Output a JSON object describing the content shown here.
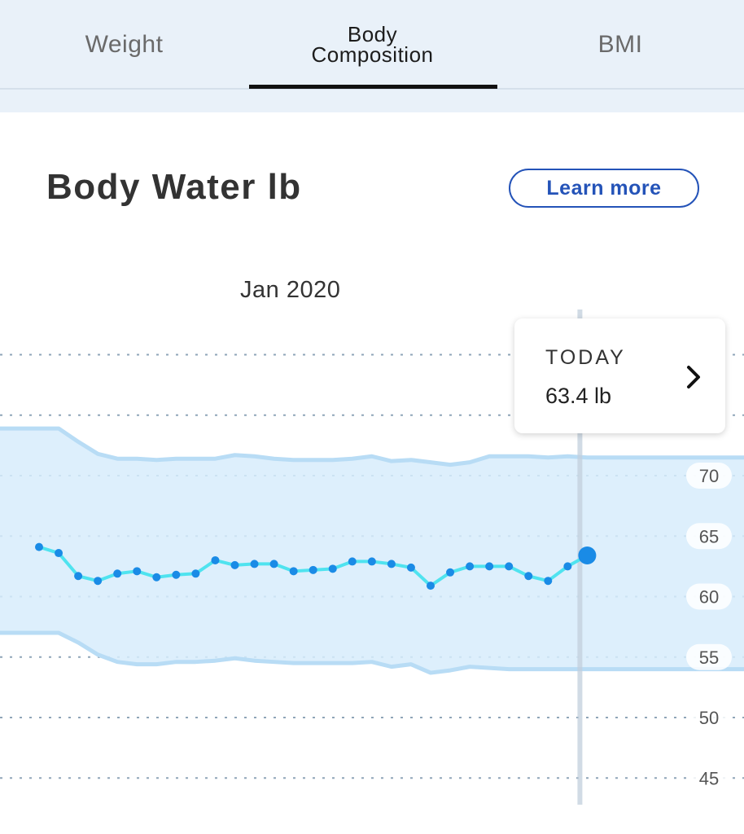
{
  "tabs": {
    "weight": "Weight",
    "body_composition_line1": "Body",
    "body_composition_line2": "Composition",
    "bmi": "BMI",
    "active": "body_composition"
  },
  "header": {
    "title": "Body Water lb",
    "learn_more": "Learn more"
  },
  "chart": {
    "month_label": "Jan 2020",
    "tooltip": {
      "label": "TODAY",
      "value": "63.4 lb"
    }
  },
  "colors": {
    "accent": "#2453b8",
    "line": "#4fe3ef",
    "dot": "#1a8be6",
    "range_fill": "#d7ecfb",
    "range_stroke": "#b8dcf5"
  },
  "chart_data": {
    "type": "line",
    "title": "Body Water lb",
    "xlabel": "Jan 2020",
    "ylabel": "",
    "yticks": [
      45,
      50,
      55,
      60,
      65,
      70
    ],
    "ylim": [
      42,
      80
    ],
    "grid": true,
    "series": [
      {
        "values": [
          64.1,
          63.6,
          61.7,
          61.3,
          61.9,
          62.1,
          61.6,
          61.8,
          61.9,
          63.0,
          62.6,
          62.7,
          62.7,
          62.1,
          62.2,
          62.3,
          62.9,
          62.9,
          62.7,
          62.4,
          60.9,
          62.0,
          62.5,
          62.5,
          62.5,
          61.7,
          61.3,
          62.5,
          63.4
        ]
      }
    ],
    "range_band": {
      "upper": [
        73.9,
        73.9,
        72.8,
        71.8,
        71.4,
        71.4,
        71.3,
        71.4,
        71.4,
        71.4,
        71.7,
        71.6,
        71.4,
        71.3,
        71.3,
        71.3,
        71.4,
        71.6,
        71.2,
        71.3,
        71.1,
        70.9,
        71.1,
        71.6,
        71.6,
        71.6,
        71.5,
        71.6,
        71.5
      ],
      "lower": [
        57.0,
        57.0,
        56.2,
        55.2,
        54.6,
        54.4,
        54.4,
        54.6,
        54.6,
        54.7,
        54.9,
        54.7,
        54.6,
        54.5,
        54.5,
        54.5,
        54.5,
        54.6,
        54.2,
        54.4,
        53.7,
        53.9,
        54.2,
        54.1,
        54.0,
        54.0,
        54.0,
        54.0,
        54.0
      ]
    },
    "selected_index": 28
  }
}
